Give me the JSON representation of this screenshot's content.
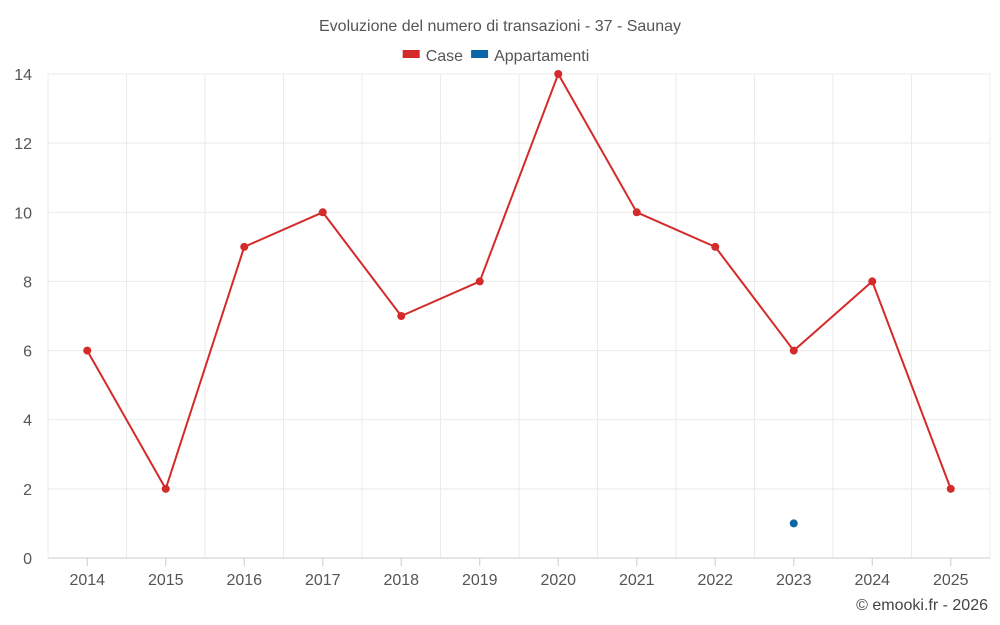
{
  "chart_data": {
    "type": "line",
    "title": "Evoluzione del numero di transazioni - 37 - Saunay",
    "categories": [
      "2014",
      "2015",
      "2016",
      "2017",
      "2018",
      "2019",
      "2020",
      "2021",
      "2022",
      "2023",
      "2024",
      "2025"
    ],
    "ylim": [
      0,
      14
    ],
    "yticks": [
      0,
      2,
      4,
      6,
      8,
      10,
      12,
      14
    ],
    "grid": true,
    "legend_position": "top-center",
    "series": [
      {
        "name": "Case",
        "color": "#d42a2a",
        "values": [
          6,
          2,
          9,
          10,
          7,
          8,
          14,
          10,
          9,
          6,
          8,
          2
        ]
      },
      {
        "name": "Appartamenti",
        "color": "#0a66a8",
        "values": [
          null,
          null,
          null,
          null,
          null,
          null,
          null,
          null,
          null,
          1,
          null,
          null
        ]
      }
    ]
  },
  "credit": "© emooki.fr - 2026"
}
